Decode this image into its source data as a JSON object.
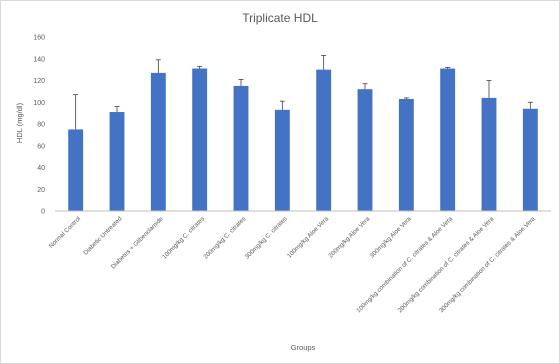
{
  "chart_data": {
    "type": "bar",
    "title": "Triplicate HDL",
    "xlabel": "Groups",
    "ylabel": "HDL (mg/dl)",
    "ylim": [
      0,
      160
    ],
    "yticks": [
      0,
      20,
      40,
      60,
      80,
      100,
      120,
      140,
      160
    ],
    "grid": false,
    "error_bars": true,
    "colors": {
      "bar": "#4472c4",
      "axis": "#bfbfbf",
      "error": "#404040"
    },
    "categories": [
      "Normal Control",
      "Diabetic  Untreated",
      "Diabetes + Glibenclamide",
      "100mg/kg C. citrates",
      "200mg/kg C. citrates",
      "300mg/kg C. citrates",
      "100mg/kg Aloe Vera",
      "200mg/kg Aloe Vera",
      "300mg/kg Aloe Vera",
      "100mg/kg combination of C. citrates & Aloe Vera",
      "200mg/kg combination of C. citrates & Aloe Vera",
      "300mg/kg combination of C. citrates & Aloe Vera"
    ],
    "values": [
      75,
      91,
      127,
      131,
      115,
      93,
      130,
      112,
      103,
      131,
      104,
      94
    ],
    "errors": [
      32,
      5,
      12,
      2,
      6,
      8,
      13,
      5,
      1,
      1,
      16,
      6
    ]
  }
}
